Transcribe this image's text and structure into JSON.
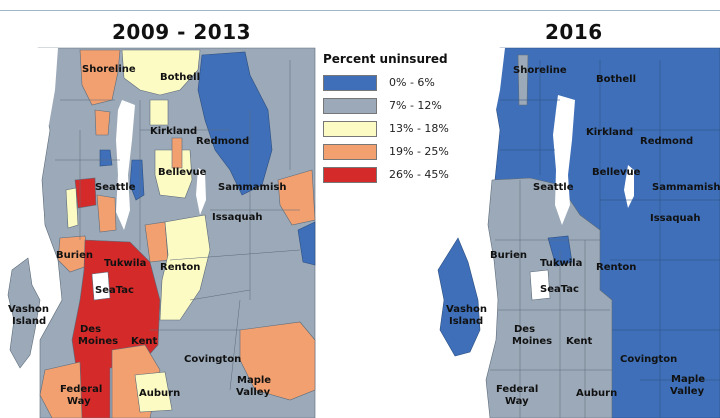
{
  "panels": {
    "left_title": "2009 - 2013",
    "right_title": "2016"
  },
  "legend": {
    "title": "Percent uninsured",
    "items": [
      {
        "label": "0% - 6%",
        "color": "#3e6fb8"
      },
      {
        "label": "7% - 12%",
        "color": "#9ba9b8"
      },
      {
        "label": "13% - 18%",
        "color": "#fdfbc4"
      },
      {
        "label": "19% - 25%",
        "color": "#f2a070"
      },
      {
        "label": "26% - 45%",
        "color": "#d42a2a"
      }
    ]
  },
  "places_left": {
    "shoreline": "Shoreline",
    "bothell": "Bothell",
    "kirkland": "Kirkland",
    "redmond": "Redmond",
    "seattle": "Seattle",
    "bellevue": "Bellevue",
    "sammamish": "Sammamish",
    "issaquah": "Issaquah",
    "burien": "Burien",
    "tukwila": "Tukwila",
    "renton": "Renton",
    "seatac": "SeaTac",
    "vashon1": "Vashon",
    "vashon2": "Island",
    "desmoines1": "Des",
    "desmoines2": "Moines",
    "kent": "Kent",
    "covington": "Covington",
    "federal1": "Federal",
    "federal2": "Way",
    "auburn": "Auburn",
    "maple1": "Maple",
    "maple2": "Valley"
  },
  "places_right": {
    "shoreline": "Shoreline",
    "bothell": "Bothell",
    "kirkland": "Kirkland",
    "redmond": "Redmond",
    "seattle": "Seattle",
    "bellevue": "Bellevue",
    "sammamish": "Sammamish",
    "issaquah": "Issaquah",
    "burien": "Burien",
    "tukwila": "Tukwila",
    "renton": "Renton",
    "seatac": "SeaTac",
    "vashon1": "Vashon",
    "vashon2": "Island",
    "desmoines1": "Des",
    "desmoines2": "Moines",
    "kent": "Kent",
    "covington": "Covington",
    "federal1": "Federal",
    "federal2": "Way",
    "auburn": "Auburn",
    "maple1": "Maple",
    "maple2": "Valley"
  }
}
